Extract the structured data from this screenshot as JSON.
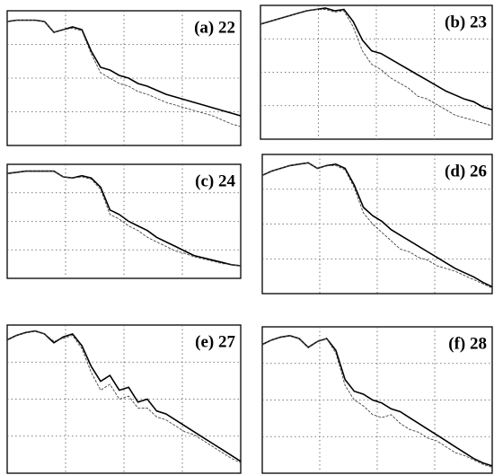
{
  "chart_data": [
    {
      "type": "line",
      "title": "(a) 22",
      "xlim": [
        0,
        100
      ],
      "ylim": [
        0,
        100
      ],
      "xticks": [
        25,
        50,
        75
      ],
      "yticks": [
        25,
        50,
        75
      ],
      "grid": true,
      "x": [
        0,
        4,
        8,
        12,
        16,
        20,
        24,
        28,
        32,
        36,
        40,
        44,
        48,
        52,
        56,
        60,
        64,
        68,
        72,
        76,
        80,
        84,
        88,
        92,
        96,
        100
      ],
      "series": [
        {
          "color": "#000000",
          "line_style": "solid",
          "values": [
            92,
            93,
            93,
            93,
            92,
            84,
            86,
            88,
            86,
            70,
            58,
            56,
            52,
            50,
            46,
            44,
            41,
            38,
            36,
            34,
            32,
            30,
            28,
            26,
            24,
            22
          ]
        },
        {
          "color": "#444444",
          "line_style": "dashed",
          "values": [
            92,
            93,
            93,
            93,
            92,
            84,
            86,
            87,
            85,
            68,
            54,
            50,
            46,
            44,
            40,
            38,
            35,
            32,
            30,
            28,
            26,
            24,
            22,
            19,
            16,
            14
          ]
        }
      ]
    },
    {
      "type": "line",
      "title": "(b) 23",
      "xlim": [
        0,
        100
      ],
      "ylim": [
        0,
        100
      ],
      "xticks": [
        25,
        50,
        75
      ],
      "yticks": [
        25,
        50,
        75
      ],
      "grid": true,
      "x": [
        0,
        4,
        8,
        12,
        16,
        20,
        24,
        28,
        32,
        36,
        40,
        44,
        48,
        52,
        56,
        60,
        64,
        68,
        72,
        76,
        80,
        84,
        88,
        92,
        96,
        100
      ],
      "series": [
        {
          "color": "#000000",
          "line_style": "solid",
          "values": [
            86,
            88,
            90,
            92,
            94,
            96,
            97,
            98,
            96,
            97,
            88,
            74,
            66,
            64,
            60,
            56,
            52,
            48,
            44,
            40,
            36,
            33,
            30,
            28,
            24,
            22
          ]
        },
        {
          "color": "#444444",
          "line_style": "dashed",
          "values": [
            86,
            88,
            90,
            92,
            94,
            96,
            97,
            97,
            95,
            96,
            84,
            66,
            56,
            52,
            46,
            42,
            38,
            32,
            30,
            26,
            22,
            18,
            16,
            14,
            12,
            10
          ]
        }
      ]
    },
    {
      "type": "line",
      "title": "(c) 24",
      "xlim": [
        0,
        100
      ],
      "ylim": [
        0,
        100
      ],
      "xticks": [
        25,
        50,
        75
      ],
      "yticks": [
        25,
        50,
        75
      ],
      "grid": true,
      "x": [
        0,
        4,
        8,
        12,
        16,
        20,
        24,
        28,
        32,
        36,
        40,
        44,
        48,
        52,
        56,
        60,
        64,
        68,
        72,
        76,
        80,
        84,
        88,
        92,
        96,
        100
      ],
      "series": [
        {
          "color": "#000000",
          "line_style": "solid",
          "values": [
            92,
            93,
            94,
            94,
            94,
            94,
            89,
            88,
            90,
            88,
            80,
            60,
            56,
            50,
            46,
            42,
            36,
            32,
            28,
            24,
            20,
            18,
            16,
            14,
            12,
            11
          ]
        },
        {
          "color": "#444444",
          "line_style": "dashed",
          "values": [
            92,
            93,
            94,
            94,
            94,
            94,
            89,
            88,
            89,
            87,
            78,
            56,
            52,
            46,
            42,
            36,
            32,
            28,
            24,
            22,
            19,
            17,
            15,
            13,
            12,
            11
          ]
        }
      ]
    },
    {
      "type": "line",
      "title": "(d) 26",
      "xlim": [
        0,
        100
      ],
      "ylim": [
        0,
        100
      ],
      "xticks": [
        25,
        50,
        75
      ],
      "yticks": [
        25,
        50,
        75
      ],
      "grid": true,
      "x": [
        0,
        4,
        8,
        12,
        16,
        20,
        24,
        28,
        32,
        36,
        40,
        44,
        48,
        52,
        56,
        60,
        64,
        68,
        72,
        76,
        80,
        84,
        88,
        92,
        96,
        100
      ],
      "series": [
        {
          "color": "#000000",
          "line_style": "solid",
          "values": [
            85,
            88,
            90,
            92,
            93,
            94,
            90,
            92,
            93,
            90,
            78,
            62,
            56,
            52,
            46,
            42,
            38,
            34,
            30,
            26,
            22,
            18,
            15,
            12,
            8,
            5
          ]
        },
        {
          "color": "#444444",
          "line_style": "dashed",
          "values": [
            85,
            88,
            90,
            92,
            93,
            94,
            90,
            92,
            92,
            89,
            76,
            58,
            50,
            44,
            38,
            32,
            30,
            26,
            24,
            20,
            18,
            16,
            13,
            10,
            7,
            4
          ]
        }
      ]
    },
    {
      "type": "line",
      "title": "(e) 27",
      "xlim": [
        0,
        100
      ],
      "ylim": [
        0,
        100
      ],
      "xticks": [
        25,
        50,
        75
      ],
      "yticks": [
        25,
        50,
        75
      ],
      "grid": true,
      "x": [
        0,
        4,
        8,
        12,
        16,
        20,
        24,
        28,
        32,
        36,
        40,
        44,
        48,
        52,
        56,
        60,
        64,
        68,
        72,
        76,
        80,
        84,
        88,
        92,
        96,
        100
      ],
      "series": [
        {
          "color": "#000000",
          "line_style": "solid",
          "values": [
            90,
            93,
            95,
            96,
            94,
            88,
            92,
            94,
            86,
            72,
            62,
            66,
            56,
            58,
            48,
            50,
            42,
            40,
            36,
            32,
            28,
            24,
            20,
            16,
            12,
            8
          ]
        },
        {
          "color": "#444444",
          "line_style": "dashed",
          "values": [
            90,
            93,
            95,
            96,
            94,
            89,
            91,
            93,
            84,
            68,
            56,
            60,
            50,
            52,
            44,
            44,
            38,
            36,
            32,
            28,
            26,
            22,
            18,
            14,
            10,
            7
          ]
        }
      ]
    },
    {
      "type": "line",
      "title": "(f) 28",
      "xlim": [
        0,
        100
      ],
      "ylim": [
        0,
        100
      ],
      "xticks": [
        25,
        50,
        75
      ],
      "yticks": [
        25,
        50,
        75
      ],
      "grid": true,
      "x": [
        0,
        4,
        8,
        12,
        16,
        20,
        24,
        28,
        32,
        36,
        40,
        44,
        48,
        52,
        56,
        60,
        64,
        68,
        72,
        76,
        80,
        84,
        88,
        92,
        96,
        100
      ],
      "series": [
        {
          "color": "#000000",
          "line_style": "solid",
          "values": [
            88,
            91,
            93,
            94,
            92,
            86,
            90,
            92,
            84,
            64,
            56,
            54,
            50,
            48,
            44,
            42,
            38,
            34,
            30,
            26,
            22,
            18,
            14,
            10,
            7,
            5
          ]
        },
        {
          "color": "#444444",
          "line_style": "dashed",
          "values": [
            88,
            91,
            93,
            94,
            92,
            86,
            90,
            92,
            82,
            60,
            50,
            46,
            40,
            38,
            40,
            34,
            30,
            28,
            24,
            22,
            18,
            14,
            12,
            9,
            6,
            4
          ]
        }
      ]
    }
  ]
}
